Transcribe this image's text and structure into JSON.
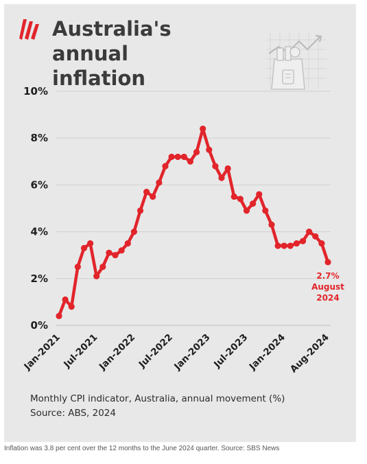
{
  "card": {
    "title_line1": "Australia's annual",
    "title_line2": "inflation",
    "footnote_line1": "Monthly CPI indicator, Australia, annual movement (%)",
    "footnote_line2": "Source: ABS, 2024"
  },
  "caption": "Inflation was 3.8 per cent over the 12 months to the June 2024 quarter. Source: SBS News",
  "icons": {
    "logo": "sbs-logo-icon",
    "illustration": "shopping-bag-chart-icon"
  },
  "colors": {
    "line": "#e1252b",
    "title": "#3b3b3b",
    "background": "#e8e8e8"
  },
  "chart_data": {
    "type": "line",
    "title": "",
    "xlabel": "",
    "ylabel": "",
    "ylim": [
      0,
      10
    ],
    "grid": true,
    "y_ticks": [
      0,
      2,
      4,
      6,
      8,
      10
    ],
    "y_tick_labels": [
      "0%",
      "2%",
      "4%",
      "6%",
      "8%",
      "10%"
    ],
    "x_tick_labels": [
      "Jan-2021",
      "Jul-2021",
      "Jan-2022",
      "Jul-2022",
      "Jan-2023",
      "Jul-2023",
      "Jan-2024",
      "Aug-2024"
    ],
    "x_tick_index": [
      0,
      6,
      12,
      18,
      24,
      30,
      36,
      43
    ],
    "x": [
      "Jan-2021",
      "Feb-2021",
      "Mar-2021",
      "Apr-2021",
      "May-2021",
      "Jun-2021",
      "Jul-2021",
      "Aug-2021",
      "Sep-2021",
      "Oct-2021",
      "Nov-2021",
      "Dec-2021",
      "Jan-2022",
      "Feb-2022",
      "Mar-2022",
      "Apr-2022",
      "May-2022",
      "Jun-2022",
      "Jul-2022",
      "Aug-2022",
      "Sep-2022",
      "Oct-2022",
      "Nov-2022",
      "Dec-2022",
      "Jan-2023",
      "Feb-2023",
      "Mar-2023",
      "Apr-2023",
      "May-2023",
      "Jun-2023",
      "Jul-2023",
      "Aug-2023",
      "Sep-2023",
      "Oct-2023",
      "Nov-2023",
      "Dec-2023",
      "Jan-2024",
      "Feb-2024",
      "Mar-2024",
      "Apr-2024",
      "May-2024",
      "Jun-2024",
      "Jul-2024",
      "Aug-2024"
    ],
    "series": [
      {
        "values": [
          0.4,
          1.1,
          0.8,
          2.5,
          3.3,
          3.5,
          2.1,
          2.5,
          3.1,
          3.0,
          3.2,
          3.5,
          4.0,
          4.9,
          5.7,
          5.5,
          6.1,
          6.8,
          7.2,
          7.2,
          7.2,
          7.0,
          7.4,
          8.4,
          7.5,
          6.8,
          6.3,
          6.7,
          5.5,
          5.4,
          4.9,
          5.2,
          5.6,
          4.9,
          4.3,
          3.4,
          3.4,
          3.4,
          3.5,
          3.6,
          4.0,
          3.8,
          3.5,
          2.7
        ]
      }
    ],
    "annotation": {
      "lines": [
        "2.7%",
        "August",
        "2024"
      ],
      "index": 43
    }
  }
}
